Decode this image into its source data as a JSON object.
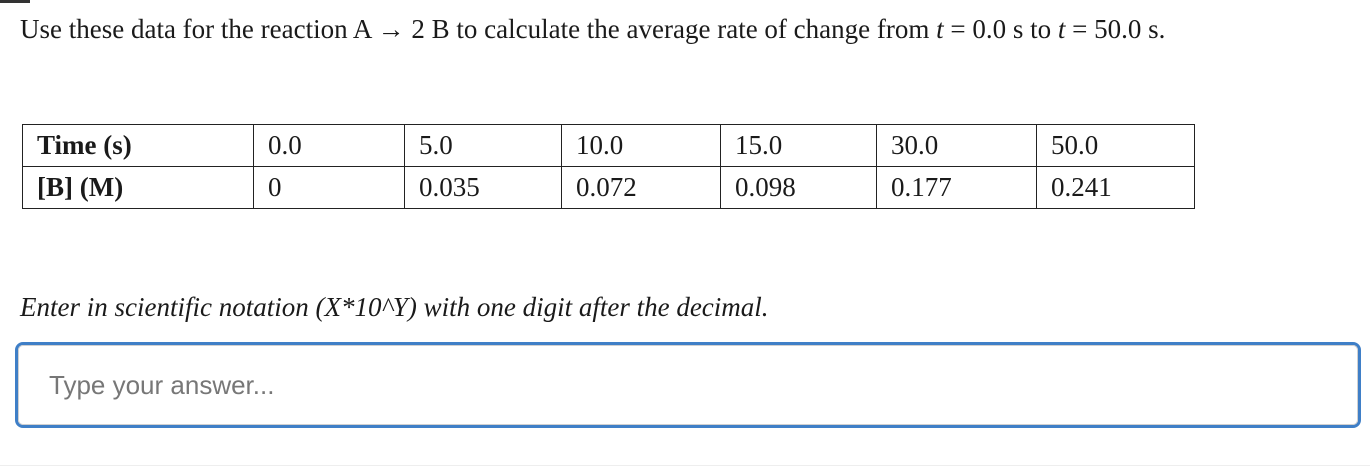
{
  "question": {
    "parts": [
      "Use these data for the reaction A → 2 B to calculate the average rate of change from ",
      "t",
      " = 0.0 s to ",
      "t",
      " = 50.0 s."
    ]
  },
  "table": {
    "rows": [
      [
        "Time (s)",
        "0.0",
        "5.0",
        "10.0",
        "15.0",
        "30.0",
        "50.0"
      ],
      [
        "[B] (M)",
        "0",
        "0.035",
        "0.072",
        "0.098",
        "0.177",
        "0.241"
      ]
    ]
  },
  "instruction": "Enter in scientific notation (X*10^Y) with one digit after the decimal.",
  "answer": {
    "placeholder": "Type your answer..."
  }
}
